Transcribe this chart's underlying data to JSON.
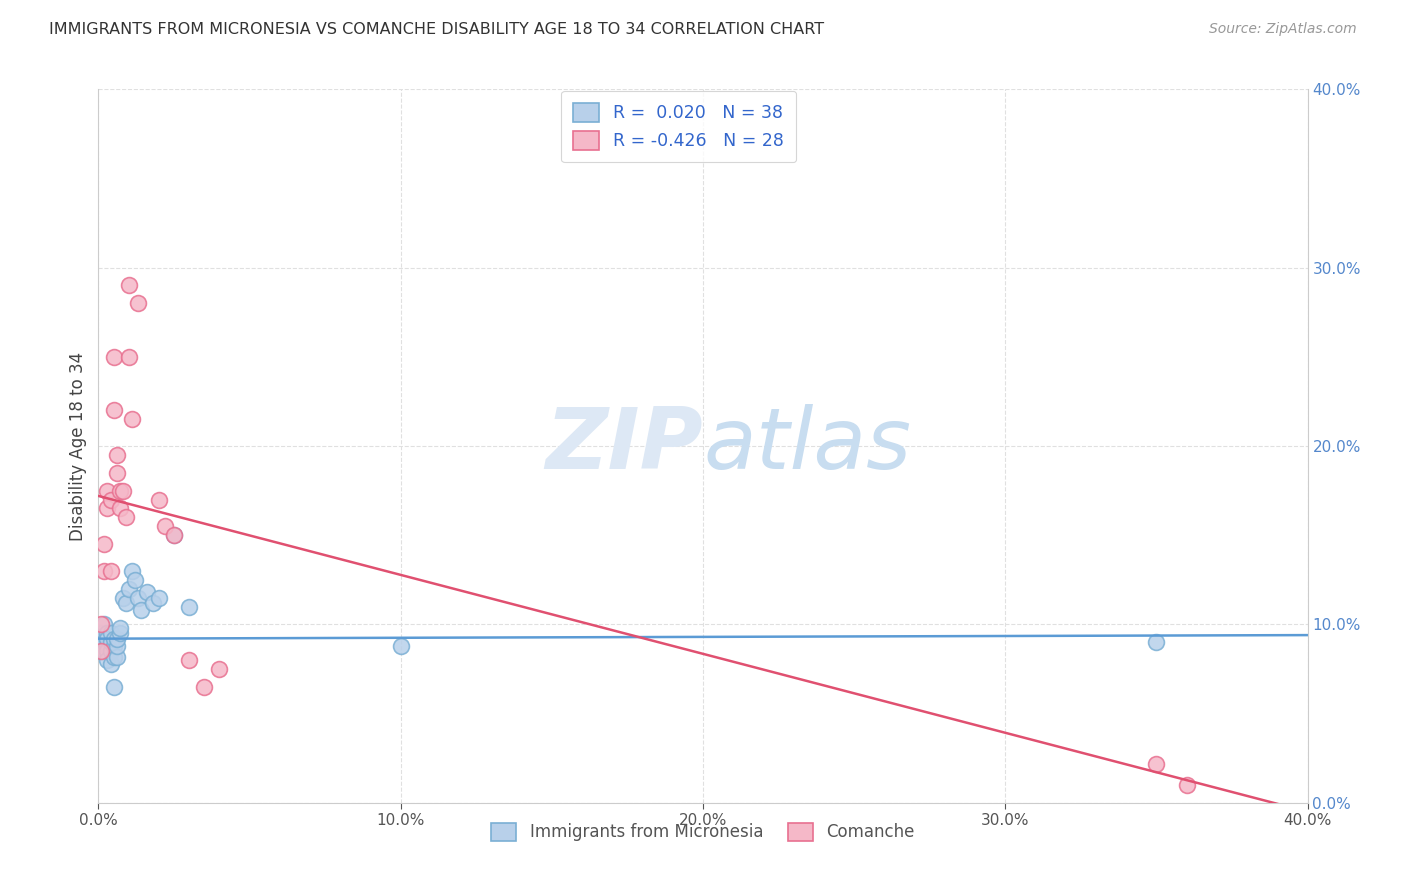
{
  "title": "IMMIGRANTS FROM MICRONESIA VS COMANCHE DISABILITY AGE 18 TO 34 CORRELATION CHART",
  "source": "Source: ZipAtlas.com",
  "ylabel": "Disability Age 18 to 34",
  "xlim": [
    0.0,
    0.4
  ],
  "ylim": [
    0.0,
    0.4
  ],
  "xticks": [
    0.0,
    0.1,
    0.2,
    0.3,
    0.4
  ],
  "yticks": [
    0.0,
    0.1,
    0.2,
    0.3,
    0.4
  ],
  "xticklabels": [
    "0.0%",
    "10.0%",
    "20.0%",
    "30.0%",
    "40.0%"
  ],
  "yticklabels_right": [
    "0.0%",
    "10.0%",
    "20.0%",
    "30.0%",
    "40.0%"
  ],
  "grid_color": "#e0e0e0",
  "background_color": "#ffffff",
  "legend_R1": "0.020",
  "legend_N1": "38",
  "legend_R2": "-0.426",
  "legend_N2": "28",
  "blue_scatter_color": "#b8d0ea",
  "blue_edge_color": "#7aafd4",
  "pink_scatter_color": "#f5b8c8",
  "pink_edge_color": "#e87090",
  "blue_line_color": "#5b9bd5",
  "pink_line_color": "#e05070",
  "legend_text_color": "#3366cc",
  "watermark_color": "#dde8f5",
  "series1_label": "Immigrants from Micronesia",
  "series2_label": "Comanche",
  "blue_line_start_y": 0.092,
  "blue_line_end_y": 0.094,
  "pink_line_start_y": 0.172,
  "pink_line_end_y": -0.005,
  "blue_x": [
    0.001,
    0.001,
    0.001,
    0.002,
    0.002,
    0.002,
    0.003,
    0.003,
    0.003,
    0.003,
    0.003,
    0.004,
    0.004,
    0.004,
    0.004,
    0.005,
    0.005,
    0.005,
    0.005,
    0.006,
    0.006,
    0.006,
    0.007,
    0.007,
    0.008,
    0.009,
    0.01,
    0.011,
    0.012,
    0.013,
    0.014,
    0.016,
    0.018,
    0.02,
    0.025,
    0.03,
    0.1,
    0.35
  ],
  "blue_y": [
    0.09,
    0.095,
    0.085,
    0.09,
    0.085,
    0.1,
    0.095,
    0.088,
    0.092,
    0.085,
    0.08,
    0.078,
    0.085,
    0.09,
    0.095,
    0.082,
    0.088,
    0.092,
    0.065,
    0.082,
    0.088,
    0.092,
    0.095,
    0.098,
    0.115,
    0.112,
    0.12,
    0.13,
    0.125,
    0.115,
    0.108,
    0.118,
    0.112,
    0.115,
    0.15,
    0.11,
    0.088,
    0.09
  ],
  "pink_x": [
    0.001,
    0.001,
    0.002,
    0.002,
    0.003,
    0.003,
    0.004,
    0.004,
    0.005,
    0.005,
    0.006,
    0.006,
    0.007,
    0.007,
    0.008,
    0.009,
    0.01,
    0.01,
    0.011,
    0.013,
    0.02,
    0.022,
    0.025,
    0.03,
    0.035,
    0.04,
    0.35,
    0.36
  ],
  "pink_y": [
    0.085,
    0.1,
    0.13,
    0.145,
    0.165,
    0.175,
    0.13,
    0.17,
    0.22,
    0.25,
    0.195,
    0.185,
    0.175,
    0.165,
    0.175,
    0.16,
    0.25,
    0.29,
    0.215,
    0.28,
    0.17,
    0.155,
    0.15,
    0.08,
    0.065,
    0.075,
    0.022,
    0.01
  ]
}
